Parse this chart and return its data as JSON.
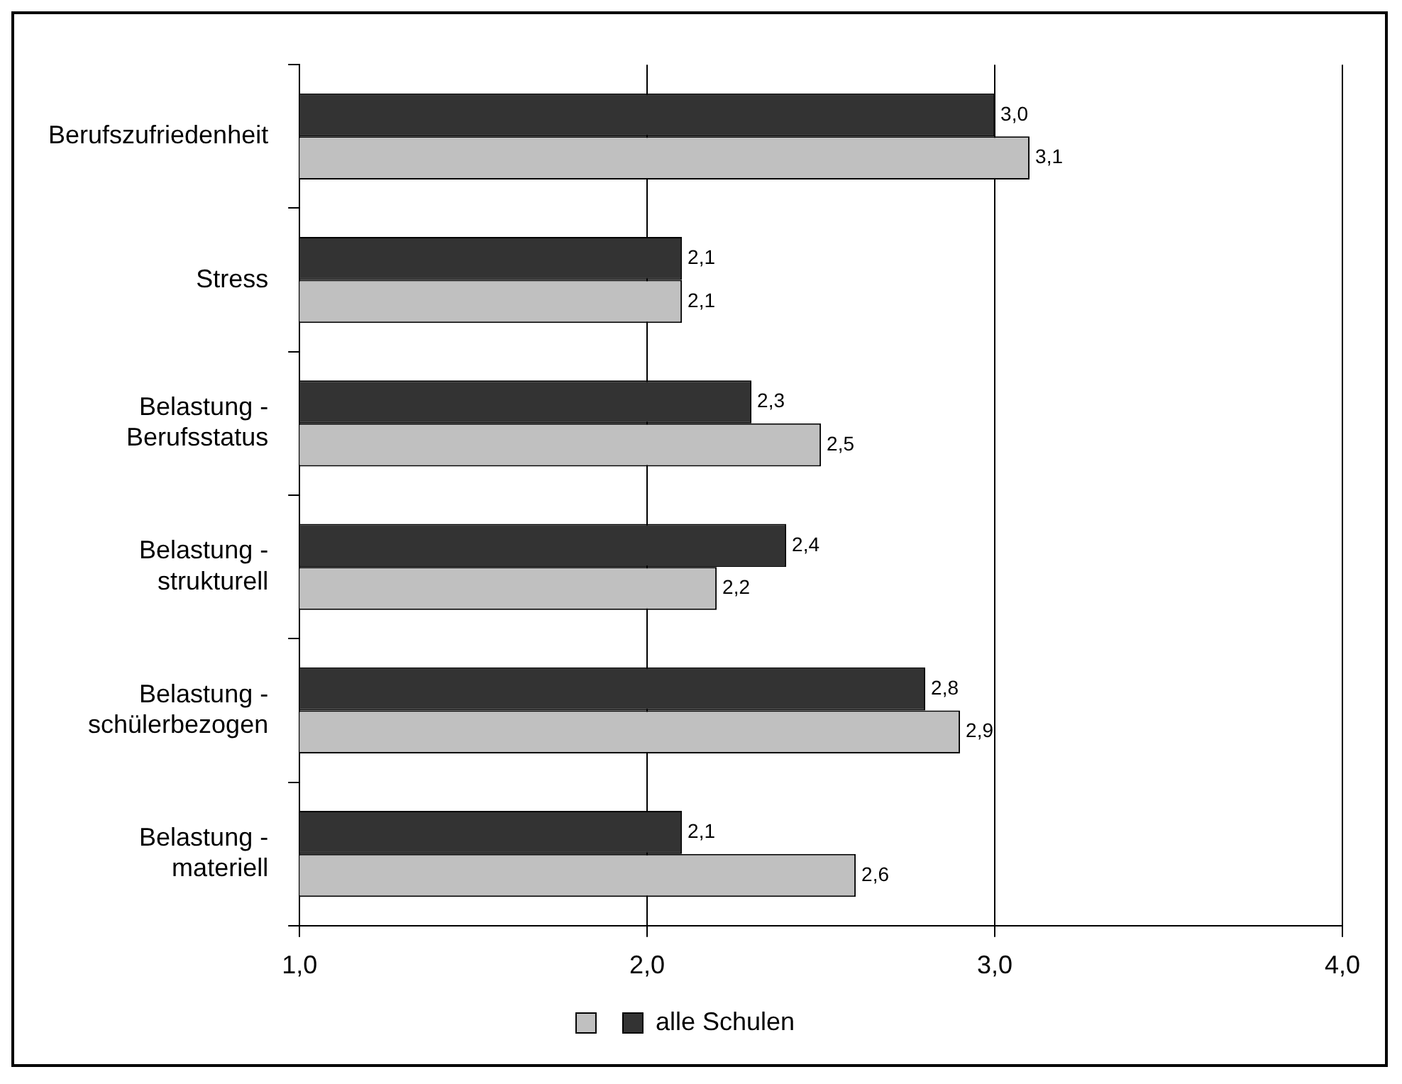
{
  "chart_data": {
    "type": "bar",
    "orientation": "horizontal",
    "categories": [
      "Berufszufriedenheit",
      "Stress",
      "Belastung -\nBerufsstatus",
      "Belastung -\nstrukturell",
      "Belastung -\nschülerbezogen",
      "Belastung -\nmateriell"
    ],
    "series": [
      {
        "name": "alle Schulen",
        "color": "#333333",
        "values": [
          3.0,
          2.1,
          2.3,
          2.4,
          2.8,
          2.1
        ],
        "value_labels": [
          "3,0",
          "2,1",
          "2,3",
          "2,4",
          "2,8",
          "2,1"
        ]
      },
      {
        "color": "#c0c0c0",
        "values": [
          3.1,
          2.1,
          2.5,
          2.2,
          2.9,
          2.6
        ],
        "value_labels": [
          "3,1",
          "2,1",
          "2,5",
          "2,2",
          "2,9",
          "2,6"
        ]
      }
    ],
    "xlim": [
      1,
      4
    ],
    "xticks": [
      {
        "value": 1,
        "label": "1,0"
      },
      {
        "value": 2,
        "label": "2,0"
      },
      {
        "value": 3,
        "label": "3,0"
      },
      {
        "value": 4,
        "label": "4,0"
      }
    ],
    "grid": "x",
    "legend": "bottom"
  }
}
